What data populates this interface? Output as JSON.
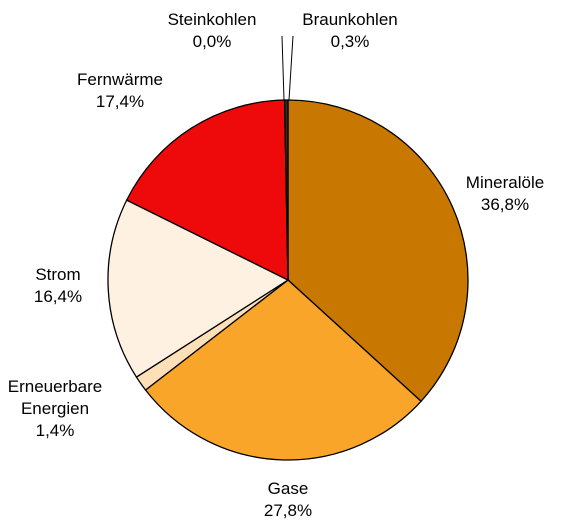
{
  "chart_data": {
    "type": "pie",
    "categories": [
      "Mineralöle",
      "Gase",
      "Erneuerbare Energien",
      "Strom",
      "Fernwärme",
      "Steinkohlen",
      "Braunkohlen"
    ],
    "values": [
      36.8,
      27.8,
      1.4,
      16.4,
      17.4,
      0.0,
      0.3
    ],
    "value_labels": [
      "36,8%",
      "27,8%",
      "1,4%",
      "16,4%",
      "17,4%",
      "0,0%",
      "0,3%"
    ],
    "colors": [
      "#c87800",
      "#f9a52a",
      "#fde0b8",
      "#fef1e1",
      "#ee0a0a",
      "#000000",
      "#3a2a1a"
    ]
  }
}
